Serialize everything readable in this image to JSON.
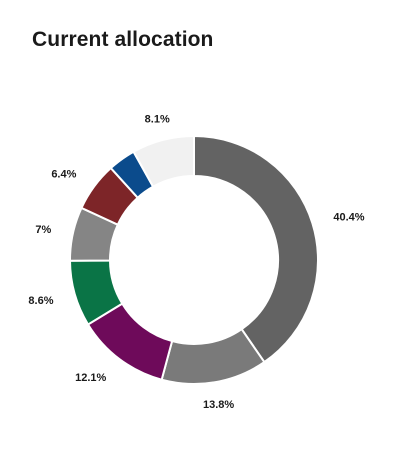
{
  "page": {
    "title": "Current allocation"
  },
  "chart_data": {
    "type": "pie",
    "variant": "donut",
    "title": "Current allocation",
    "legend": "none",
    "slices": [
      {
        "value": 40.4,
        "label": "40.4%",
        "color": "#636363"
      },
      {
        "value": 13.8,
        "label": "13.8%",
        "color": "#7a7a7a"
      },
      {
        "value": 12.1,
        "label": "12.1%",
        "color": "#6e0a5a"
      },
      {
        "value": 8.6,
        "label": "8.6%",
        "color": "#0a7446"
      },
      {
        "value": 7,
        "label": "7%",
        "color": "#858585"
      },
      {
        "value": 6.4,
        "label": "6.4%",
        "color": "#7d2528"
      },
      {
        "value": 3.6,
        "label": "",
        "color": "#0b4b8c"
      },
      {
        "value": 8.1,
        "label": "8.1%",
        "color": "#f1f1f1"
      }
    ]
  }
}
